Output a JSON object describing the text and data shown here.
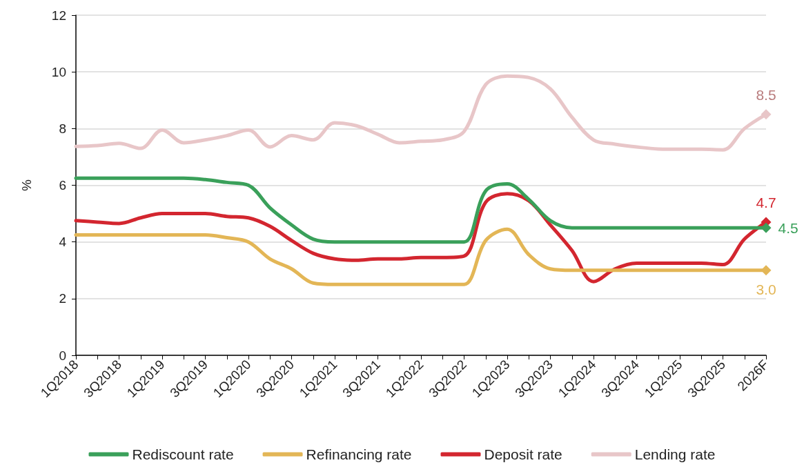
{
  "chart_data": {
    "type": "line",
    "ylabel": "%",
    "categories": [
      "1Q2018",
      null,
      "3Q2018",
      null,
      "1Q2019",
      null,
      "3Q2019",
      null,
      "1Q2020",
      null,
      "3Q2020",
      null,
      "1Q2021",
      null,
      "3Q2021",
      null,
      "1Q2022",
      null,
      "3Q2022",
      null,
      "1Q2023",
      null,
      "3Q2023",
      null,
      "1Q2024",
      null,
      "3Q2024",
      null,
      "1Q2025",
      null,
      "3Q2025",
      null,
      "2026F"
    ],
    "series": [
      {
        "name": "Rediscount rate",
        "color": "#3aa05a",
        "values": [
          6.25,
          6.25,
          6.25,
          6.25,
          6.25,
          6.25,
          6.2,
          6.1,
          6.0,
          5.2,
          4.6,
          4.1,
          4.0,
          4.0,
          4.0,
          4.0,
          4.0,
          4.0,
          4.0,
          5.8,
          6.05,
          5.5,
          4.75,
          4.5,
          4.5,
          4.5,
          4.5,
          4.5,
          4.5,
          4.5,
          4.5,
          4.5,
          4.5
        ],
        "value_labels": [
          null,
          null,
          null,
          null,
          null,
          null,
          null,
          null,
          null,
          null,
          null,
          null,
          null,
          null,
          null,
          null,
          null,
          null,
          null,
          null,
          null,
          null,
          null,
          null,
          null,
          null,
          null,
          null,
          null,
          null,
          null,
          null,
          "4.5"
        ]
      },
      {
        "name": "Refinancing rate",
        "color": "#e3b656",
        "values": [
          4.25,
          4.25,
          4.25,
          4.25,
          4.25,
          4.25,
          4.25,
          4.15,
          4.0,
          3.4,
          3.05,
          2.55,
          2.5,
          2.5,
          2.5,
          2.5,
          2.5,
          2.5,
          2.5,
          4.05,
          4.45,
          3.55,
          3.05,
          3.0,
          3.0,
          3.0,
          3.0,
          3.0,
          3.0,
          3.0,
          3.0,
          3.0,
          3.0
        ],
        "value_labels": [
          null,
          null,
          null,
          null,
          null,
          null,
          null,
          null,
          null,
          null,
          null,
          null,
          null,
          null,
          null,
          null,
          null,
          null,
          null,
          null,
          null,
          null,
          null,
          null,
          null,
          null,
          null,
          null,
          null,
          null,
          null,
          null,
          "3.0"
        ]
      },
      {
        "name": "Deposit rate",
        "color": "#d3262f",
        "values": [
          4.75,
          4.7,
          4.65,
          4.85,
          5.0,
          5.0,
          5.0,
          4.9,
          4.85,
          4.55,
          4.05,
          3.6,
          3.4,
          3.35,
          3.4,
          3.4,
          3.45,
          3.45,
          3.5,
          5.4,
          5.7,
          5.45,
          4.6,
          3.7,
          2.6,
          3.05,
          3.25,
          3.25,
          3.25,
          3.25,
          3.2,
          4.1,
          4.7
        ],
        "value_labels": [
          null,
          null,
          null,
          null,
          null,
          null,
          null,
          null,
          null,
          null,
          null,
          null,
          null,
          null,
          null,
          null,
          null,
          null,
          null,
          null,
          null,
          null,
          null,
          null,
          null,
          null,
          null,
          null,
          null,
          null,
          null,
          null,
          "4.7"
        ]
      },
      {
        "name": "Lending rate",
        "color": "#e8c6c8",
        "values": [
          7.37,
          7.4,
          7.48,
          7.3,
          7.95,
          7.5,
          7.6,
          7.75,
          7.95,
          7.35,
          7.75,
          7.6,
          8.2,
          8.1,
          7.8,
          7.5,
          7.55,
          7.6,
          7.9,
          9.55,
          9.85,
          9.8,
          9.4,
          8.4,
          7.6,
          7.45,
          7.35,
          7.28,
          7.27,
          7.27,
          7.25,
          8.0,
          8.5
        ],
        "value_labels": [
          null,
          null,
          null,
          null,
          null,
          null,
          null,
          null,
          null,
          null,
          null,
          null,
          null,
          null,
          null,
          null,
          null,
          null,
          null,
          null,
          null,
          null,
          null,
          null,
          null,
          null,
          null,
          null,
          null,
          null,
          null,
          null,
          "8.5"
        ]
      }
    ],
    "ylim": [
      0,
      12
    ],
    "yticks": [
      0,
      2,
      4,
      6,
      8,
      10,
      12
    ],
    "grid": "y",
    "legend": "bottom"
  }
}
